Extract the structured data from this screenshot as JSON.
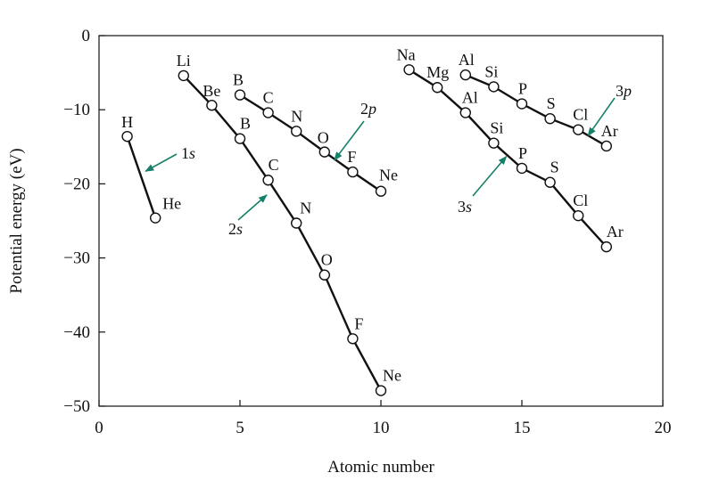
{
  "chart_data": {
    "type": "line",
    "title": "",
    "xlabel": "Atomic number",
    "ylabel": "Potential energy (eV)",
    "xlim": [
      0,
      20
    ],
    "ylim": [
      -50,
      0
    ],
    "x_ticks": [
      0,
      5,
      10,
      15,
      20
    ],
    "y_ticks": [
      0,
      -10,
      -20,
      -30,
      -40,
      -50
    ],
    "x_tick_labels": [
      "0",
      "5",
      "10",
      "15",
      "20"
    ],
    "y_tick_labels": [
      "0",
      "−10",
      "−20",
      "−30",
      "−40",
      "−50"
    ],
    "grid": false,
    "legend": "none",
    "line_color": "#111111",
    "arrow_color": "#17806a",
    "series": [
      {
        "name": "1s",
        "points": [
          {
            "x": 1,
            "y": -13.6,
            "label": "H"
          },
          {
            "x": 2,
            "y": -24.6,
            "label": "He"
          }
        ]
      },
      {
        "name": "2s",
        "points": [
          {
            "x": 3,
            "y": -5.4,
            "label": "Li"
          },
          {
            "x": 4,
            "y": -9.4,
            "label": "Be"
          },
          {
            "x": 5,
            "y": -13.9,
            "label": "B"
          },
          {
            "x": 6,
            "y": -19.5,
            "label": "C"
          },
          {
            "x": 7,
            "y": -25.3,
            "label": "N"
          },
          {
            "x": 8,
            "y": -32.3,
            "label": "O"
          },
          {
            "x": 9,
            "y": -40.9,
            "label": "F"
          },
          {
            "x": 10,
            "y": -47.9,
            "label": "Ne"
          }
        ]
      },
      {
        "name": "2p",
        "points": [
          {
            "x": 5,
            "y": -8.0,
            "label": "B"
          },
          {
            "x": 6,
            "y": -10.4,
            "label": "C"
          },
          {
            "x": 7,
            "y": -12.9,
            "label": "N"
          },
          {
            "x": 8,
            "y": -15.7,
            "label": "O"
          },
          {
            "x": 9,
            "y": -18.4,
            "label": "F"
          },
          {
            "x": 10,
            "y": -21.0,
            "label": "Ne"
          }
        ]
      },
      {
        "name": "3s",
        "points": [
          {
            "x": 11,
            "y": -4.6,
            "label": "Na"
          },
          {
            "x": 12,
            "y": -7.0,
            "label": "Mg"
          },
          {
            "x": 13,
            "y": -10.4,
            "label": "Al"
          },
          {
            "x": 14,
            "y": -14.5,
            "label": "Si"
          },
          {
            "x": 15,
            "y": -17.9,
            "label": "P"
          },
          {
            "x": 16,
            "y": -19.8,
            "label": "S"
          },
          {
            "x": 17,
            "y": -24.3,
            "label": "Cl"
          },
          {
            "x": 18,
            "y": -28.5,
            "label": "Ar"
          }
        ]
      },
      {
        "name": "3p",
        "points": [
          {
            "x": 13,
            "y": -5.3,
            "label": "Al"
          },
          {
            "x": 14,
            "y": -6.9,
            "label": "Si"
          },
          {
            "x": 15,
            "y": -9.2,
            "label": "P"
          },
          {
            "x": 16,
            "y": -11.2,
            "label": "S"
          },
          {
            "x": 17,
            "y": -12.7,
            "label": "Cl"
          },
          {
            "x": 18,
            "y": -14.9,
            "label": "Ar"
          }
        ]
      }
    ],
    "annotations": [
      {
        "text_main": "1",
        "text_italic": "s",
        "series": "1s"
      },
      {
        "text_main": "2",
        "text_italic": "s",
        "series": "2s"
      },
      {
        "text_main": "2",
        "text_italic": "p",
        "series": "2p"
      },
      {
        "text_main": "3",
        "text_italic": "s",
        "series": "3s"
      },
      {
        "text_main": "3",
        "text_italic": "p",
        "series": "3p"
      }
    ]
  }
}
